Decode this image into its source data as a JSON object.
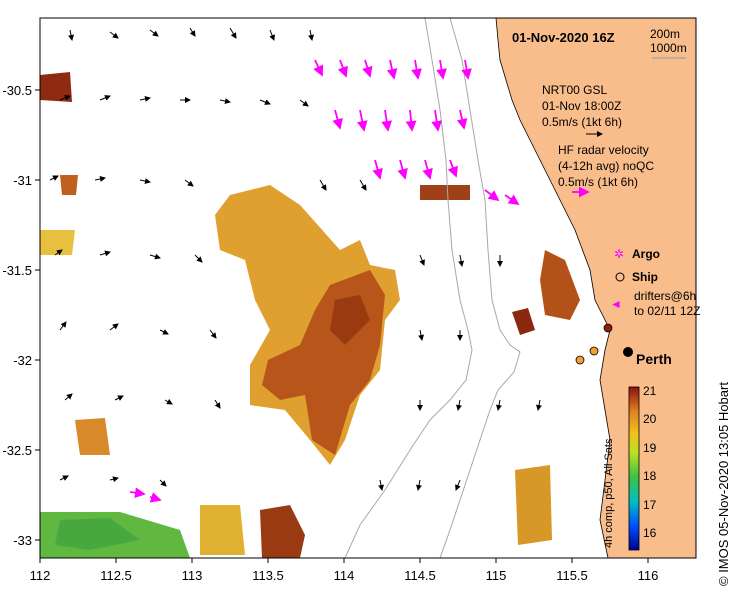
{
  "map": {
    "title": "01-Nov-2020 16Z",
    "city": "Perth",
    "isobath_legend": [
      "200m",
      "1000m"
    ],
    "model_block": [
      "NRT00 GSL",
      "01-Nov 18:00Z",
      "0.5m/s (1kt 6h)"
    ],
    "radar_block": [
      "HF radar velocity",
      "(4-12h avg) noQC",
      "0.5m/s (1kt 6h)"
    ],
    "legend": {
      "argo": "Argo",
      "ship": "Ship",
      "drifters": [
        "drifters@6h",
        "to 02/11 12Z"
      ]
    },
    "lon_ticks": [
      "112",
      "112.5",
      "113",
      "113.5",
      "114",
      "114.5",
      "115",
      "115.5",
      "116"
    ],
    "lat_ticks": [
      "-30.5",
      "-31",
      "-31.5",
      "-32",
      "-32.5",
      "-33"
    ],
    "colorbar": {
      "ticks": [
        "21",
        "20",
        "19",
        "18",
        "17",
        "16"
      ],
      "label": "4h comp, p50, All Sats",
      "range": [
        15.6,
        21
      ]
    },
    "credit": "© IMOS 05-Nov-2020 13:05 Hobart",
    "colors": {
      "land": "#f9bd8c",
      "sst_warm": "#b04a10",
      "sst_mid": "#e0a020",
      "sst_cool": "#58b838",
      "radar_arrows": "#ff00ff",
      "isobath": "#a0a0a0"
    }
  }
}
